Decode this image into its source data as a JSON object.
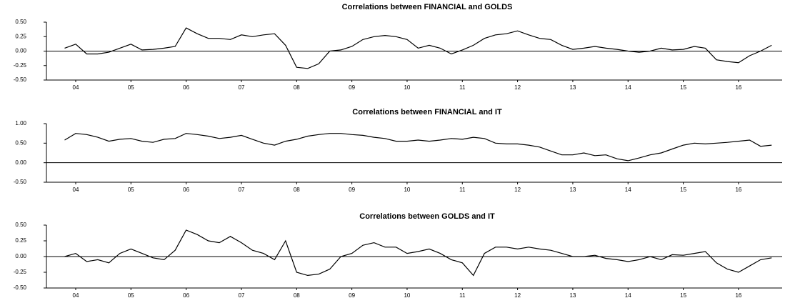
{
  "chart_data": [
    {
      "type": "line",
      "title": "Correlations between FINANCIAL and GOLDS",
      "color": "#000000",
      "x": [
        3.8,
        4.0,
        4.2,
        4.4,
        4.6,
        4.8,
        5.0,
        5.2,
        5.4,
        5.6,
        5.8,
        6.0,
        6.2,
        6.4,
        6.6,
        6.8,
        7.0,
        7.2,
        7.4,
        7.6,
        7.8,
        8.0,
        8.2,
        8.4,
        8.6,
        8.8,
        9.0,
        9.2,
        9.4,
        9.6,
        9.8,
        10.0,
        10.2,
        10.4,
        10.6,
        10.8,
        11.0,
        11.2,
        11.4,
        11.6,
        11.8,
        12.0,
        12.2,
        12.4,
        12.6,
        12.8,
        13.0,
        13.2,
        13.4,
        13.6,
        13.8,
        14.0,
        14.2,
        14.4,
        14.6,
        14.8,
        15.0,
        15.2,
        15.4,
        15.6,
        15.8,
        16.0,
        16.2,
        16.4,
        16.6
      ],
      "values": [
        0.05,
        0.12,
        -0.05,
        -0.05,
        -0.02,
        0.05,
        0.12,
        0.02,
        0.03,
        0.05,
        0.08,
        0.4,
        0.3,
        0.22,
        0.22,
        0.2,
        0.28,
        0.25,
        0.28,
        0.3,
        0.1,
        -0.28,
        -0.3,
        -0.22,
        0.0,
        0.02,
        0.08,
        0.2,
        0.25,
        0.27,
        0.25,
        0.2,
        0.05,
        0.1,
        0.05,
        -0.05,
        0.02,
        0.1,
        0.22,
        0.28,
        0.3,
        0.35,
        0.28,
        0.22,
        0.2,
        0.1,
        0.03,
        0.05,
        0.08,
        0.05,
        0.03,
        0.0,
        -0.02,
        0.0,
        0.05,
        0.02,
        0.03,
        0.08,
        0.05,
        -0.15,
        -0.18,
        -0.2,
        -0.08,
        0.0,
        0.1
      ],
      "xlim": [
        3.47,
        16.79
      ],
      "xticks": [
        {
          "value": 4,
          "label": "04"
        },
        {
          "value": 5,
          "label": "05"
        },
        {
          "value": 6,
          "label": "06"
        },
        {
          "value": 7,
          "label": "07"
        },
        {
          "value": 8,
          "label": "08"
        },
        {
          "value": 9,
          "label": "09"
        },
        {
          "value": 10,
          "label": "10"
        },
        {
          "value": 11,
          "label": "11"
        },
        {
          "value": 12,
          "label": "12"
        },
        {
          "value": 13,
          "label": "13"
        },
        {
          "value": 14,
          "label": "14"
        },
        {
          "value": 15,
          "label": "15"
        },
        {
          "value": 16,
          "label": "16"
        }
      ],
      "ylim": [
        -0.5,
        0.5
      ],
      "yticks": [
        {
          "value": -0.5,
          "label": "-0.50"
        },
        {
          "value": -0.25,
          "label": "-0.25"
        },
        {
          "value": 0,
          "label": "0.00"
        },
        {
          "value": 0.25,
          "label": "0.25"
        },
        {
          "value": 0.5,
          "label": "0.50"
        }
      ]
    },
    {
      "type": "line",
      "title": "Correlations between FINANCIAL and IT",
      "color": "#000000",
      "x": [
        3.8,
        4.0,
        4.2,
        4.4,
        4.6,
        4.8,
        5.0,
        5.2,
        5.4,
        5.6,
        5.8,
        6.0,
        6.2,
        6.4,
        6.6,
        6.8,
        7.0,
        7.2,
        7.4,
        7.6,
        7.8,
        8.0,
        8.2,
        8.4,
        8.6,
        8.8,
        9.0,
        9.2,
        9.4,
        9.6,
        9.8,
        10.0,
        10.2,
        10.4,
        10.6,
        10.8,
        11.0,
        11.2,
        11.4,
        11.6,
        11.8,
        12.0,
        12.2,
        12.4,
        12.6,
        12.8,
        13.0,
        13.2,
        13.4,
        13.6,
        13.8,
        14.0,
        14.2,
        14.4,
        14.6,
        14.8,
        15.0,
        15.2,
        15.4,
        15.6,
        15.8,
        16.0,
        16.2,
        16.4,
        16.6
      ],
      "values": [
        0.58,
        0.75,
        0.72,
        0.65,
        0.55,
        0.6,
        0.62,
        0.55,
        0.52,
        0.6,
        0.62,
        0.75,
        0.72,
        0.68,
        0.62,
        0.65,
        0.7,
        0.6,
        0.5,
        0.45,
        0.55,
        0.6,
        0.68,
        0.72,
        0.75,
        0.75,
        0.72,
        0.7,
        0.65,
        0.62,
        0.55,
        0.55,
        0.58,
        0.55,
        0.58,
        0.62,
        0.6,
        0.65,
        0.62,
        0.5,
        0.48,
        0.48,
        0.45,
        0.4,
        0.3,
        0.2,
        0.2,
        0.25,
        0.18,
        0.2,
        0.1,
        0.05,
        0.12,
        0.2,
        0.25,
        0.35,
        0.45,
        0.5,
        0.48,
        0.5,
        0.52,
        0.55,
        0.58,
        0.42,
        0.45
      ],
      "xlim": [
        3.47,
        16.79
      ],
      "xticks": [
        {
          "value": 4,
          "label": "04"
        },
        {
          "value": 5,
          "label": "05"
        },
        {
          "value": 6,
          "label": "06"
        },
        {
          "value": 7,
          "label": "07"
        },
        {
          "value": 8,
          "label": "08"
        },
        {
          "value": 9,
          "label": "09"
        },
        {
          "value": 10,
          "label": "10"
        },
        {
          "value": 11,
          "label": "11"
        },
        {
          "value": 12,
          "label": "12"
        },
        {
          "value": 13,
          "label": "13"
        },
        {
          "value": 14,
          "label": "14"
        },
        {
          "value": 15,
          "label": "15"
        },
        {
          "value": 16,
          "label": "16"
        }
      ],
      "ylim": [
        -0.5,
        1.0
      ],
      "yticks": [
        {
          "value": -0.5,
          "label": "-0.50"
        },
        {
          "value": 0,
          "label": "0.00"
        },
        {
          "value": 0.5,
          "label": "0.50"
        },
        {
          "value": 1,
          "label": "1.00"
        }
      ]
    },
    {
      "type": "line",
      "title": "Correlations between GOLDS and IT",
      "color": "#000000",
      "x": [
        3.8,
        4.0,
        4.2,
        4.4,
        4.6,
        4.8,
        5.0,
        5.2,
        5.4,
        5.6,
        5.8,
        6.0,
        6.2,
        6.4,
        6.6,
        6.8,
        7.0,
        7.2,
        7.4,
        7.6,
        7.8,
        8.0,
        8.2,
        8.4,
        8.6,
        8.8,
        9.0,
        9.2,
        9.4,
        9.6,
        9.8,
        10.0,
        10.2,
        10.4,
        10.6,
        10.8,
        11.0,
        11.2,
        11.4,
        11.6,
        11.8,
        12.0,
        12.2,
        12.4,
        12.6,
        12.8,
        13.0,
        13.2,
        13.4,
        13.6,
        13.8,
        14.0,
        14.2,
        14.4,
        14.6,
        14.8,
        15.0,
        15.2,
        15.4,
        15.6,
        15.8,
        16.0,
        16.2,
        16.4,
        16.6
      ],
      "values": [
        0.0,
        0.05,
        -0.08,
        -0.05,
        -0.1,
        0.05,
        0.12,
        0.05,
        -0.02,
        -0.05,
        0.1,
        0.42,
        0.35,
        0.25,
        0.22,
        0.32,
        0.22,
        0.1,
        0.05,
        -0.05,
        0.25,
        -0.25,
        -0.3,
        -0.28,
        -0.2,
        0.0,
        0.05,
        0.18,
        0.22,
        0.15,
        0.15,
        0.05,
        0.08,
        0.12,
        0.05,
        -0.05,
        -0.1,
        -0.3,
        0.05,
        0.15,
        0.15,
        0.12,
        0.15,
        0.12,
        0.1,
        0.05,
        0.0,
        0.0,
        0.02,
        -0.03,
        -0.05,
        -0.08,
        -0.05,
        0.0,
        -0.05,
        0.03,
        0.02,
        0.05,
        0.08,
        -0.1,
        -0.2,
        -0.25,
        -0.15,
        -0.05,
        -0.02
      ],
      "xlim": [
        3.47,
        16.79
      ],
      "xticks": [
        {
          "value": 4,
          "label": "04"
        },
        {
          "value": 5,
          "label": "05"
        },
        {
          "value": 6,
          "label": "06"
        },
        {
          "value": 7,
          "label": "07"
        },
        {
          "value": 8,
          "label": "08"
        },
        {
          "value": 9,
          "label": "09"
        },
        {
          "value": 10,
          "label": "10"
        },
        {
          "value": 11,
          "label": "11"
        },
        {
          "value": 12,
          "label": "12"
        },
        {
          "value": 13,
          "label": "13"
        },
        {
          "value": 14,
          "label": "14"
        },
        {
          "value": 15,
          "label": "15"
        },
        {
          "value": 16,
          "label": "16"
        }
      ],
      "ylim": [
        -0.5,
        0.5
      ],
      "yticks": [
        {
          "value": -0.5,
          "label": "-0.50"
        },
        {
          "value": -0.25,
          "label": "-0.25"
        },
        {
          "value": 0,
          "label": "0.00"
        },
        {
          "value": 0.25,
          "label": "0.25"
        },
        {
          "value": 0.5,
          "label": "0.50"
        }
      ]
    }
  ]
}
